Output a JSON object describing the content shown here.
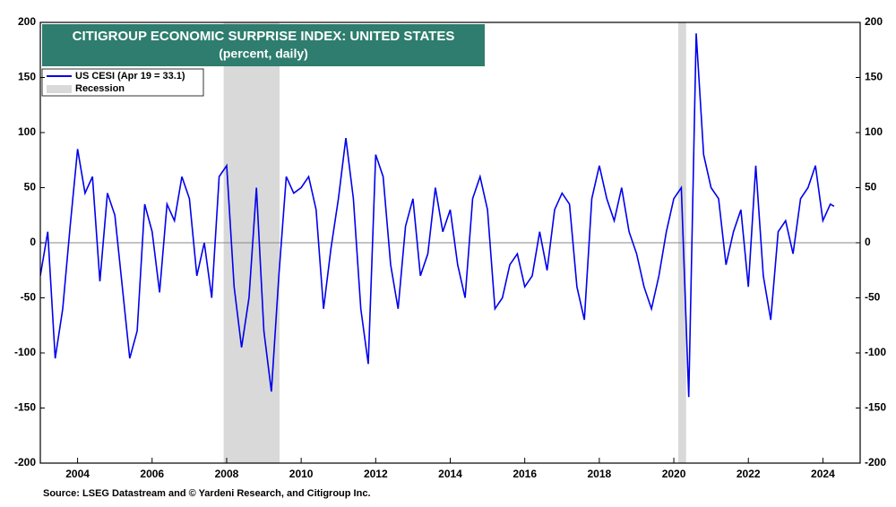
{
  "chart_data": {
    "type": "line",
    "title": "CITIGROUP ECONOMIC SURPRISE INDEX: UNITED STATES",
    "subtitle": "(percent, daily)",
    "source": "Source: LSEG Datastream and © Yardeni Research, and Citigroup Inc.",
    "x": [
      2003.0,
      2003.2,
      2003.4,
      2003.6,
      2003.8,
      2004.0,
      2004.2,
      2004.4,
      2004.6,
      2004.8,
      2005.0,
      2005.2,
      2005.4,
      2005.6,
      2005.8,
      2006.0,
      2006.2,
      2006.4,
      2006.6,
      2006.8,
      2007.0,
      2007.2,
      2007.4,
      2007.6,
      2007.8,
      2008.0,
      2008.2,
      2008.4,
      2008.6,
      2008.8,
      2009.0,
      2009.2,
      2009.4,
      2009.6,
      2009.8,
      2010.0,
      2010.2,
      2010.4,
      2010.6,
      2010.8,
      2011.0,
      2011.2,
      2011.4,
      2011.6,
      2011.8,
      2012.0,
      2012.2,
      2012.4,
      2012.6,
      2012.8,
      2013.0,
      2013.2,
      2013.4,
      2013.6,
      2013.8,
      2014.0,
      2014.2,
      2014.4,
      2014.6,
      2014.8,
      2015.0,
      2015.2,
      2015.4,
      2015.6,
      2015.8,
      2016.0,
      2016.2,
      2016.4,
      2016.6,
      2016.8,
      2017.0,
      2017.2,
      2017.4,
      2017.6,
      2017.8,
      2018.0,
      2018.2,
      2018.4,
      2018.6,
      2018.8,
      2019.0,
      2019.2,
      2019.4,
      2019.6,
      2019.8,
      2020.0,
      2020.2,
      2020.4,
      2020.6,
      2020.8,
      2021.0,
      2021.2,
      2021.4,
      2021.6,
      2021.8,
      2022.0,
      2022.2,
      2022.4,
      2022.6,
      2022.8,
      2023.0,
      2023.2,
      2023.4,
      2023.6,
      2023.8,
      2024.0,
      2024.2,
      2024.3
    ],
    "series": [
      {
        "name": "US CESI (Apr 19 = 33.1)",
        "color": "#0000ee",
        "values": [
          -30,
          10,
          -105,
          -60,
          15,
          85,
          45,
          60,
          -35,
          45,
          25,
          -40,
          -105,
          -80,
          35,
          10,
          -45,
          35,
          20,
          60,
          40,
          -30,
          0,
          -50,
          60,
          70,
          -40,
          -95,
          -50,
          50,
          -80,
          -135,
          -30,
          60,
          45,
          50,
          60,
          30,
          -60,
          -5,
          40,
          95,
          40,
          -60,
          -110,
          80,
          60,
          -20,
          -60,
          15,
          40,
          -30,
          -10,
          50,
          10,
          30,
          -20,
          -50,
          40,
          60,
          30,
          -60,
          -50,
          -20,
          -10,
          -40,
          -30,
          10,
          -25,
          30,
          45,
          35,
          -40,
          -70,
          40,
          70,
          40,
          20,
          50,
          10,
          -10,
          -40,
          -60,
          -30,
          10,
          40,
          50,
          -140,
          190,
          80,
          50,
          40,
          -20,
          10,
          30,
          -40,
          70,
          -30,
          -70,
          10,
          20,
          -10,
          40,
          50,
          70,
          20,
          35,
          33.1
        ]
      }
    ],
    "recession_name": "Recession",
    "recession_color": "#d9d9d9",
    "recessions": [
      [
        2007.92,
        2009.42
      ],
      [
        2020.12,
        2020.33
      ]
    ],
    "xlim": [
      2003,
      2025
    ],
    "xticks": [
      2004,
      2006,
      2008,
      2010,
      2012,
      2014,
      2016,
      2018,
      2020,
      2022,
      2024
    ],
    "ylim": [
      -200,
      200
    ],
    "yticks": [
      -200,
      -150,
      -100,
      -50,
      0,
      50,
      100,
      150,
      200
    ]
  }
}
